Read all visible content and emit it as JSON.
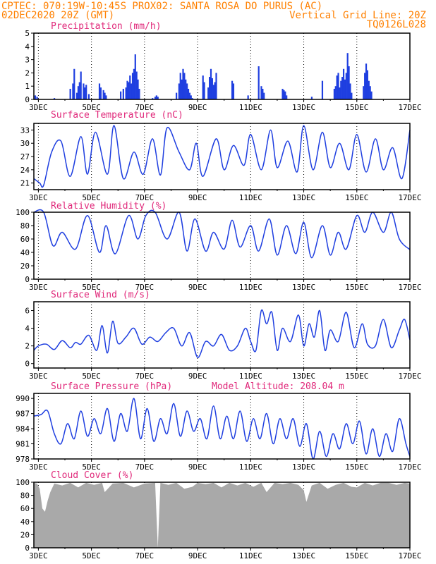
{
  "header": {
    "line1_left": "CPTEC:  070:19W-10:45S  PROX02: SANTA ROSA DO PURUS (AC)",
    "line2_left": "02DEC2020 20Z (GMT)",
    "line2_right": "Vertical Grid Line: 20Z",
    "line3_right": "TQ0126L028"
  },
  "x_axis": {
    "tick_labels": [
      "3DEC",
      "5DEC",
      "7DEC",
      "9DEC",
      "11DEC",
      "13DEC",
      "15DEC",
      "17DEC"
    ],
    "start_day": 2.83,
    "end_day": 17.0
  },
  "colors": {
    "line": "#1f3fe0",
    "bars": "#1f3fe0",
    "cloud": "#a9a9a9",
    "title": "#e0287a",
    "header": "#ff8000"
  },
  "chart_data": [
    {
      "type": "bar",
      "title": "Precipitation (mm/h)",
      "ylim": [
        0,
        5
      ],
      "yticks": [
        0,
        1,
        2,
        3,
        4,
        5
      ],
      "x": [
        2.88,
        2.95,
        3.6,
        4.2,
        4.3,
        4.35,
        4.45,
        4.5,
        4.55,
        4.6,
        4.7,
        4.75,
        4.8,
        4.9,
        5.3,
        5.35,
        5.45,
        5.5,
        5.55,
        6.1,
        6.2,
        6.3,
        6.35,
        6.4,
        6.45,
        6.5,
        6.55,
        6.6,
        6.65,
        6.7,
        6.75,
        6.8,
        7.3,
        7.4,
        7.45,
        7.5,
        8.2,
        8.3,
        8.35,
        8.4,
        8.45,
        8.5,
        8.55,
        8.6,
        8.65,
        8.7,
        8.75,
        8.8,
        9.2,
        9.25,
        9.4,
        9.45,
        9.5,
        9.55,
        9.6,
        9.65,
        9.7,
        10.3,
        10.35,
        10.9,
        11.3,
        11.4,
        11.45,
        11.5,
        12.2,
        12.25,
        12.3,
        12.35,
        13.3,
        13.7,
        14.15,
        14.2,
        14.25,
        14.3,
        14.35,
        14.4,
        14.45,
        14.5,
        14.55,
        14.6,
        14.65,
        14.7,
        14.75,
        14.8,
        15.25,
        15.3,
        15.35,
        15.4,
        15.45,
        15.5,
        15.55
      ],
      "values": [
        0.3,
        0.2,
        0.1,
        0.8,
        1.2,
        2.3,
        0.5,
        1.0,
        1.3,
        2.1,
        1.2,
        0.9,
        1.1,
        0.4,
        1.2,
        0.9,
        0.7,
        0.5,
        0.3,
        0.6,
        0.8,
        0.9,
        1.4,
        1.3,
        1.8,
        1.2,
        2.0,
        2.3,
        3.4,
        2.1,
        1.5,
        0.8,
        0.1,
        0.2,
        0.3,
        0.2,
        0.5,
        1.2,
        2.0,
        1.5,
        2.3,
        2.0,
        1.5,
        1.2,
        0.8,
        0.5,
        0.3,
        0.1,
        1.8,
        1.3,
        0.9,
        1.7,
        2.3,
        1.6,
        1.1,
        1.3,
        2.0,
        1.4,
        1.2,
        0.3,
        2.5,
        1.0,
        0.8,
        0.5,
        0.8,
        0.7,
        0.6,
        0.3,
        0.2,
        1.4,
        0.8,
        1.0,
        1.8,
        2.0,
        0.9,
        1.4,
        1.7,
        2.3,
        1.5,
        2.0,
        3.5,
        2.5,
        1.2,
        0.5,
        1.0,
        2.0,
        2.7,
        2.2,
        1.4,
        1.0,
        0.6
      ]
    },
    {
      "type": "line",
      "title": "Surface Temperature (nC)",
      "ylim": [
        19.5,
        34.5
      ],
      "yticks": [
        21,
        24,
        27,
        30,
        33
      ],
      "x": [
        2.83,
        3.05,
        3.2,
        3.5,
        3.85,
        4.2,
        4.6,
        4.85,
        5.15,
        5.6,
        5.85,
        6.2,
        6.6,
        6.95,
        7.3,
        7.6,
        7.85,
        8.3,
        8.7,
        8.95,
        9.2,
        9.7,
        10.0,
        10.35,
        10.75,
        11.0,
        11.4,
        11.75,
        12.0,
        12.4,
        12.75,
        13.0,
        13.35,
        13.7,
        14.0,
        14.35,
        14.7,
        15.0,
        15.35,
        15.7,
        16.0,
        16.35,
        16.7,
        17.0
      ],
      "values": [
        22.0,
        21.0,
        20.5,
        28.0,
        30.5,
        22.5,
        31.5,
        23.0,
        32.5,
        23.0,
        34.0,
        22.0,
        28.0,
        23.0,
        31.0,
        22.8,
        33.5,
        28.0,
        24.0,
        30.0,
        22.5,
        31.0,
        24.0,
        29.5,
        25.0,
        32.0,
        24.0,
        33.0,
        24.5,
        30.5,
        23.5,
        34.0,
        24.0,
        32.5,
        24.5,
        30.0,
        24.0,
        32.0,
        23.5,
        31.0,
        24.0,
        29.0,
        22.0,
        33.0
      ]
    },
    {
      "type": "line",
      "title": "Relative Humidity (%)",
      "ylim": [
        0,
        100
      ],
      "yticks": [
        0,
        20,
        40,
        60,
        80,
        100
      ],
      "x": [
        2.83,
        3.2,
        3.55,
        3.9,
        4.4,
        4.85,
        5.3,
        5.55,
        5.9,
        6.4,
        6.75,
        7.05,
        7.4,
        7.85,
        8.3,
        8.6,
        8.9,
        9.3,
        9.6,
        10.0,
        10.3,
        10.6,
        11.0,
        11.3,
        11.7,
        12.0,
        12.35,
        12.7,
        13.0,
        13.3,
        13.7,
        14.0,
        14.3,
        14.6,
        15.0,
        15.3,
        15.6,
        16.0,
        16.3,
        16.6,
        17.0
      ],
      "values": [
        100,
        100,
        50,
        70,
        45,
        95,
        40,
        80,
        38,
        95,
        60,
        95,
        100,
        60,
        100,
        42,
        90,
        42,
        70,
        45,
        88,
        48,
        80,
        42,
        90,
        36,
        80,
        38,
        85,
        32,
        80,
        36,
        70,
        45,
        95,
        70,
        100,
        70,
        100,
        60,
        44
      ]
    },
    {
      "type": "line",
      "title": "Surface Wind (m/s)",
      "ylim": [
        -0.5,
        7
      ],
      "yticks": [
        0,
        2,
        4,
        6
      ],
      "x": [
        2.83,
        3.0,
        3.3,
        3.6,
        3.9,
        4.2,
        4.4,
        4.6,
        4.9,
        5.2,
        5.4,
        5.6,
        5.8,
        6.0,
        6.3,
        6.6,
        6.9,
        7.2,
        7.5,
        7.8,
        8.1,
        8.4,
        8.7,
        9.0,
        9.3,
        9.6,
        9.9,
        10.2,
        10.5,
        10.8,
        11.0,
        11.2,
        11.4,
        11.6,
        11.8,
        12.0,
        12.2,
        12.5,
        12.8,
        13.0,
        13.2,
        13.4,
        13.6,
        13.8,
        14.0,
        14.3,
        14.6,
        14.9,
        15.2,
        15.4,
        15.7,
        16.0,
        16.3,
        16.6,
        16.8,
        17.0
      ],
      "values": [
        1.5,
        2.0,
        2.2,
        1.6,
        2.6,
        1.8,
        2.4,
        2.2,
        3.2,
        1.5,
        4.3,
        1.2,
        4.8,
        2.3,
        3.0,
        4.0,
        2.2,
        3.0,
        2.5,
        3.5,
        4.0,
        2.0,
        3.5,
        0.7,
        2.5,
        2.0,
        3.3,
        1.5,
        2.0,
        4.0,
        2.5,
        1.5,
        6.0,
        4.5,
        5.8,
        1.5,
        4.0,
        2.5,
        5.5,
        2.0,
        4.5,
        3.0,
        6.0,
        1.5,
        3.8,
        2.5,
        5.8,
        1.8,
        4.5,
        2.2,
        2.0,
        5.0,
        1.8,
        3.8,
        5.0,
        2.7
      ]
    },
    {
      "type": "line",
      "title": "Surface Pressure (hPa)",
      "annotation": "Model Altitude: 208.04 m",
      "ylim": [
        978,
        991
      ],
      "yticks": [
        978,
        981,
        984,
        987,
        990
      ],
      "x": [
        2.83,
        3.1,
        3.35,
        3.6,
        3.85,
        4.1,
        4.35,
        4.6,
        4.85,
        5.1,
        5.35,
        5.6,
        5.85,
        6.1,
        6.35,
        6.6,
        6.85,
        7.1,
        7.35,
        7.6,
        7.85,
        8.1,
        8.35,
        8.6,
        8.85,
        9.1,
        9.35,
        9.6,
        9.85,
        10.1,
        10.35,
        10.6,
        10.85,
        11.1,
        11.35,
        11.6,
        11.85,
        12.1,
        12.35,
        12.6,
        12.85,
        13.1,
        13.35,
        13.6,
        13.85,
        14.1,
        14.35,
        14.6,
        14.85,
        15.1,
        15.35,
        15.6,
        15.85,
        16.1,
        16.35,
        16.6,
        16.85,
        17.0
      ],
      "values": [
        986.5,
        986.8,
        987.5,
        983.0,
        981.0,
        985.0,
        982.0,
        987.5,
        982.5,
        986.0,
        983.0,
        988.0,
        981.5,
        987.0,
        983.5,
        990.0,
        982.0,
        988.0,
        981.5,
        986.0,
        983.0,
        989.0,
        982.5,
        987.5,
        983.5,
        986.0,
        982.0,
        988.5,
        982.0,
        986.5,
        982.0,
        987.5,
        981.5,
        986.0,
        982.0,
        987.0,
        981.0,
        986.0,
        982.0,
        986.0,
        980.5,
        985.0,
        978.0,
        983.5,
        978.5,
        983.0,
        980.0,
        985.0,
        981.0,
        985.5,
        979.0,
        984.0,
        978.5,
        983.0,
        979.5,
        986.0,
        981.0,
        978.5
      ]
    },
    {
      "type": "area",
      "title": "Cloud Cover (%)",
      "ylim": [
        0,
        100
      ],
      "yticks": [
        0,
        20,
        40,
        60,
        80,
        100
      ],
      "x": [
        2.83,
        2.95,
        3.05,
        3.15,
        3.25,
        3.35,
        3.45,
        3.6,
        3.9,
        4.2,
        4.5,
        4.8,
        5.1,
        5.4,
        5.5,
        5.8,
        6.2,
        6.6,
        7.0,
        7.4,
        7.5,
        7.6,
        7.9,
        8.2,
        8.5,
        8.8,
        9.0,
        9.3,
        9.6,
        9.9,
        10.2,
        10.5,
        10.8,
        11.1,
        11.4,
        11.6,
        11.9,
        12.2,
        12.5,
        12.8,
        13.0,
        13.1,
        13.3,
        13.6,
        13.9,
        14.2,
        14.5,
        14.8,
        15.0,
        15.3,
        15.6,
        15.9,
        16.2,
        16.5,
        16.8,
        17.0
      ],
      "values": [
        99,
        98,
        90,
        60,
        55,
        72,
        85,
        98,
        95,
        99,
        92,
        99,
        96,
        99,
        85,
        98,
        99,
        92,
        98,
        99,
        0,
        99,
        96,
        99,
        90,
        93,
        99,
        97,
        99,
        92,
        99,
        95,
        99,
        93,
        99,
        85,
        99,
        97,
        99,
        96,
        88,
        70,
        95,
        99,
        90,
        96,
        99,
        93,
        92,
        99,
        95,
        99,
        99,
        96,
        99,
        98
      ]
    }
  ]
}
